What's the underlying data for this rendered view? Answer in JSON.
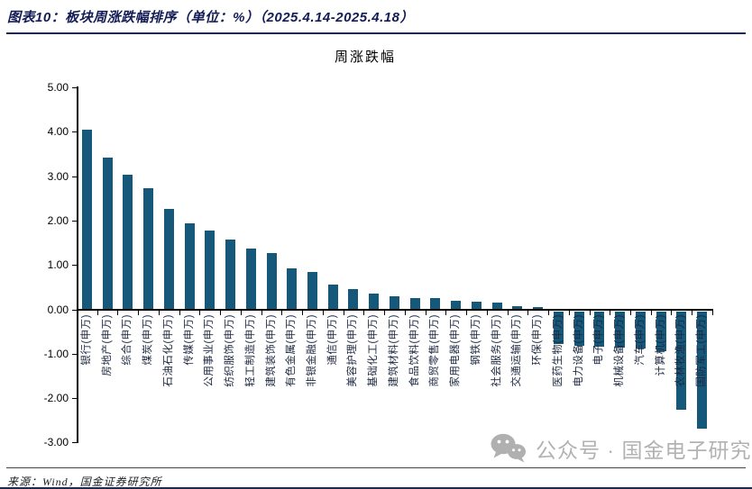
{
  "header": {
    "title": "图表10：板块周涨跌幅排序（单位：%）（2025.4.14-2025.4.18）"
  },
  "footer": {
    "source": "来源：Wind，国金证券研究所"
  },
  "watermark": {
    "icon": "wechat-icon",
    "text": "公众号 · 国金电子研究"
  },
  "chart_data": {
    "type": "bar",
    "title": "周涨跌幅",
    "unit": "%",
    "ylim": [
      -3,
      5
    ],
    "ytick_step": 1,
    "ytick_labels": [
      "5.00",
      "4.00",
      "3.00",
      "2.00",
      "1.00",
      "0.00",
      "-1.00",
      "-2.00",
      "-3.00"
    ],
    "grid": false,
    "legend": false,
    "bar_color": "#16587A",
    "categories": [
      "银行(申万)",
      "房地产(申万)",
      "综合(申万)",
      "煤炭(申万)",
      "石油石化(申万)",
      "传媒(申万)",
      "公用事业(申万)",
      "纺织服饰(申万)",
      "轻工制造(申万)",
      "建筑装饰(申万)",
      "有色金属(申万)",
      "非银金融(申万)",
      "通信(申万)",
      "美容护理(申万)",
      "基础化工(申万)",
      "建筑材料(申万)",
      "食品饮料(申万)",
      "商贸零售(申万)",
      "家用电器(申万)",
      "钢铁(申万)",
      "社会服务(申万)",
      "交通运输(申万)",
      "环保(申万)",
      "医药生物(申万)",
      "电力设备(申万)",
      "电子(申万)",
      "机械设备(申万)",
      "汽车(申万)",
      "计算机(申万)",
      "农林牧渔(申万)",
      "国防军工(申万)"
    ],
    "values": [
      4.05,
      3.42,
      3.03,
      2.72,
      2.27,
      1.93,
      1.78,
      1.57,
      1.36,
      1.26,
      0.92,
      0.85,
      0.56,
      0.46,
      0.35,
      0.29,
      0.26,
      0.25,
      0.2,
      0.18,
      0.15,
      0.07,
      0.05,
      -0.75,
      -0.78,
      -0.8,
      -0.83,
      -0.85,
      -0.9,
      -2.23,
      -2.64
    ]
  }
}
